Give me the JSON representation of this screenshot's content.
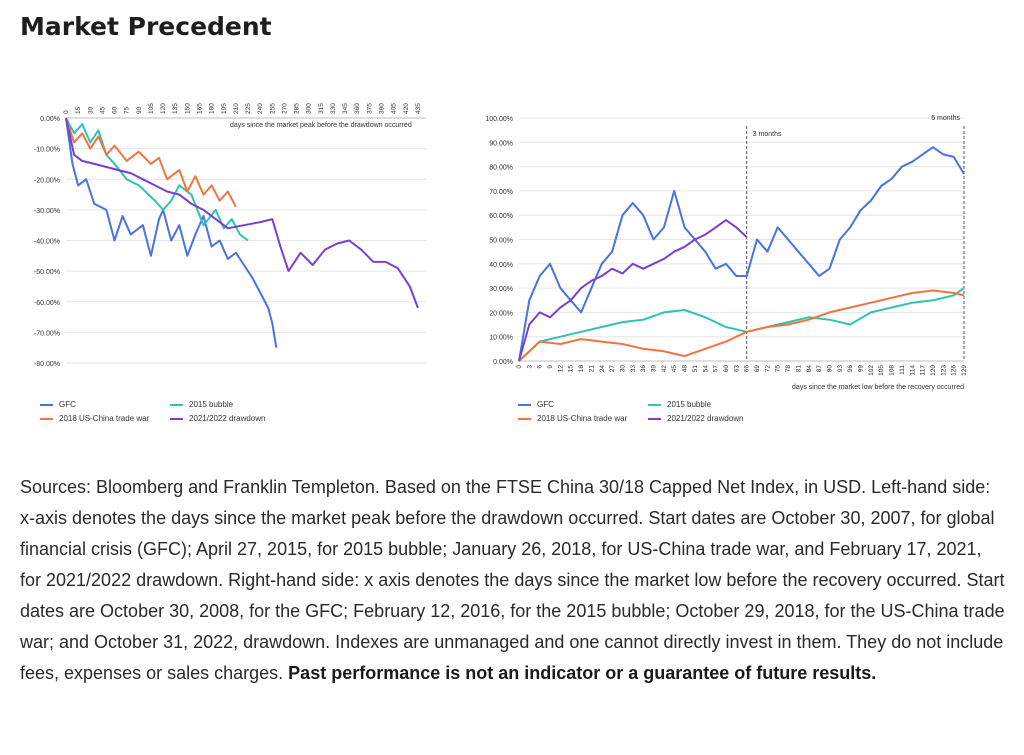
{
  "title": "Market Precedent",
  "notes": {
    "sources": "Sources: Bloomberg and Franklin Templeton. Based on the FTSE China 30/18 Capped Net Index, in USD. Left-hand side: x-axis denotes the days since the market peak before the drawdown occurred. Start dates are October 30, 2007, for global financial crisis (GFC); April 27, 2015, for 2015 bubble; January 26, 2018, for US-China trade war, and February 17, 2021, for 2021/2022 drawdown. Right-hand side: x axis denotes the days since the market low before the recovery occurred. Start dates are October 30, 2008, for the GFC; February 12, 2016, for the 2015 bubble; October 29, 2018, for the US-China trade war; and October 31, 2022, drawdown. Indexes are unmanaged and one cannot directly invest in them. They do not include fees, expenses or sales charges.",
    "disclaimer": "Past performance is not an indicator or a guarantee of future results."
  },
  "colors": {
    "GFC": "#4a72e0",
    "2015 bubble": "#2ec4b0",
    "2018 US-China trade war": "#f07440",
    "2021/2022 drawdown": "#7a3fd0"
  },
  "chart_data": [
    {
      "type": "line",
      "xlabel": "days since the market peak before the drawdown occurred",
      "ylabel": "",
      "x_tick_labels": [
        "0",
        "15",
        "30",
        "45",
        "60",
        "75",
        "90",
        "105",
        "120",
        "135",
        "150",
        "165",
        "180",
        "195",
        "210",
        "225",
        "240",
        "255",
        "270",
        "285",
        "300",
        "315",
        "330",
        "345",
        "360",
        "375",
        "390",
        "405",
        "420",
        "435"
      ],
      "y_tick_labels": [
        "0.00%",
        "-10.00%",
        "-20.00%",
        "-30.00%",
        "-40.00%",
        "-50.00%",
        "-60.00%",
        "-70.00%",
        "-80.00%"
      ],
      "xlim": [
        0,
        445
      ],
      "ylim": [
        -80,
        0
      ],
      "grid": "horizontal",
      "legend_position": "bottom",
      "legend": [
        "GFC",
        "2015 bubble",
        "2018 US-China trade war",
        "2021/2022 drawdown"
      ],
      "series": [
        {
          "name": "GFC",
          "x": [
            0,
            8,
            15,
            25,
            35,
            50,
            60,
            70,
            80,
            95,
            105,
            115,
            120,
            130,
            140,
            150,
            160,
            170,
            180,
            190,
            200,
            210,
            220,
            230,
            240,
            250,
            255,
            260
          ],
          "y": [
            0,
            -15,
            -22,
            -20,
            -28,
            -30,
            -40,
            -32,
            -38,
            -35,
            -45,
            -33,
            -30,
            -40,
            -35,
            -45,
            -38,
            -32,
            -42,
            -40,
            -46,
            -44,
            -48,
            -52,
            -57,
            -62,
            -67,
            -75
          ]
        },
        {
          "name": "2015 bubble",
          "x": [
            0,
            10,
            20,
            30,
            40,
            50,
            60,
            75,
            90,
            110,
            120,
            130,
            140,
            155,
            170,
            185,
            195,
            205,
            215,
            225
          ],
          "y": [
            0,
            -5,
            -2,
            -8,
            -4,
            -12,
            -15,
            -20,
            -22,
            -27,
            -30,
            -27,
            -22,
            -25,
            -35,
            -30,
            -36,
            -33,
            -38,
            -40
          ]
        },
        {
          "name": "2018 US-China trade war",
          "x": [
            0,
            10,
            20,
            30,
            40,
            50,
            60,
            75,
            90,
            105,
            115,
            125,
            140,
            150,
            160,
            170,
            180,
            190,
            200,
            210
          ],
          "y": [
            0,
            -8,
            -5,
            -10,
            -6,
            -12,
            -9,
            -14,
            -11,
            -15,
            -13,
            -20,
            -17,
            -24,
            -19,
            -25,
            -22,
            -27,
            -24,
            -29
          ]
        },
        {
          "name": "2021/2022 drawdown",
          "x": [
            0,
            10,
            20,
            35,
            50,
            65,
            80,
            95,
            110,
            125,
            140,
            155,
            170,
            185,
            200,
            220,
            240,
            255,
            265,
            275,
            290,
            305,
            320,
            335,
            350,
            365,
            380,
            395,
            410,
            425,
            435
          ],
          "y": [
            0,
            -12,
            -14,
            -15,
            -16,
            -17,
            -18,
            -20,
            -22,
            -24,
            -25,
            -28,
            -30,
            -33,
            -36,
            -35,
            -34,
            -33,
            -42,
            -50,
            -44,
            -48,
            -43,
            -41,
            -40,
            -43,
            -47,
            -47,
            -49,
            -55,
            -62
          ]
        }
      ]
    },
    {
      "type": "line",
      "xlabel": "days since the market low before the recovery occurred",
      "ylabel": "",
      "x_tick_labels": [
        "0",
        "3",
        "6",
        "9",
        "12",
        "15",
        "18",
        "21",
        "24",
        "27",
        "30",
        "33",
        "36",
        "39",
        "42",
        "45",
        "48",
        "51",
        "54",
        "57",
        "60",
        "63",
        "66",
        "69",
        "72",
        "75",
        "78",
        "81",
        "84",
        "87",
        "90",
        "93",
        "96",
        "99",
        "102",
        "105",
        "108",
        "111",
        "114",
        "117",
        "120",
        "123",
        "126",
        "129"
      ],
      "y_tick_labels": [
        "100.00%",
        "90.00%",
        "80.00%",
        "70.00%",
        "60.00%",
        "50.00%",
        "40.00%",
        "30.00%",
        "20.00%",
        "10.00%",
        "0.00%"
      ],
      "xlim": [
        0,
        129
      ],
      "ylim": [
        0,
        100
      ],
      "grid": "horizontal",
      "legend_position": "bottom",
      "legend": [
        "GFC",
        "2015 bubble",
        "2018 US-China trade war",
        "2021/2022 drawdown"
      ],
      "annotations": [
        {
          "label": "3 months",
          "x": 66
        },
        {
          "label": "6 months",
          "x": 129
        }
      ],
      "series": [
        {
          "name": "GFC",
          "x": [
            0,
            3,
            6,
            9,
            12,
            15,
            18,
            21,
            24,
            27,
            30,
            33,
            36,
            39,
            42,
            45,
            48,
            51,
            54,
            57,
            60,
            63,
            66,
            69,
            72,
            75,
            78,
            81,
            84,
            87,
            90,
            93,
            96,
            99,
            102,
            105,
            108,
            111,
            114,
            117,
            120,
            123,
            126,
            129
          ],
          "y": [
            0,
            25,
            35,
            40,
            30,
            25,
            20,
            30,
            40,
            45,
            60,
            65,
            60,
            50,
            55,
            70,
            55,
            50,
            45,
            38,
            40,
            35,
            35,
            50,
            45,
            55,
            50,
            45,
            40,
            35,
            38,
            50,
            55,
            62,
            66,
            72,
            75,
            80,
            82,
            85,
            88,
            85,
            84,
            77
          ]
        },
        {
          "name": "2015 bubble",
          "x": [
            0,
            6,
            12,
            18,
            24,
            30,
            36,
            42,
            48,
            54,
            60,
            66,
            72,
            78,
            84,
            90,
            96,
            102,
            108,
            114,
            120,
            126,
            129
          ],
          "y": [
            0,
            8,
            10,
            12,
            14,
            16,
            17,
            20,
            21,
            18,
            14,
            12,
            14,
            16,
            18,
            17,
            15,
            20,
            22,
            24,
            25,
            27,
            30
          ]
        },
        {
          "name": "2018 US-China trade war",
          "x": [
            0,
            6,
            12,
            18,
            24,
            30,
            36,
            42,
            48,
            54,
            60,
            66,
            72,
            78,
            84,
            90,
            96,
            102,
            108,
            114,
            120,
            126,
            129
          ],
          "y": [
            0,
            8,
            7,
            9,
            8,
            7,
            5,
            4,
            2,
            5,
            8,
            12,
            14,
            15,
            17,
            20,
            22,
            24,
            26,
            28,
            29,
            28,
            27
          ]
        },
        {
          "name": "2021/2022 drawdown",
          "x": [
            0,
            3,
            6,
            9,
            12,
            15,
            18,
            21,
            24,
            27,
            30,
            33,
            36,
            39,
            42,
            45,
            48,
            51,
            54,
            57,
            60,
            63,
            66
          ],
          "y": [
            0,
            15,
            20,
            18,
            22,
            25,
            30,
            33,
            35,
            38,
            36,
            40,
            38,
            40,
            42,
            45,
            47,
            50,
            52,
            55,
            58,
            55,
            51
          ]
        }
      ]
    }
  ]
}
